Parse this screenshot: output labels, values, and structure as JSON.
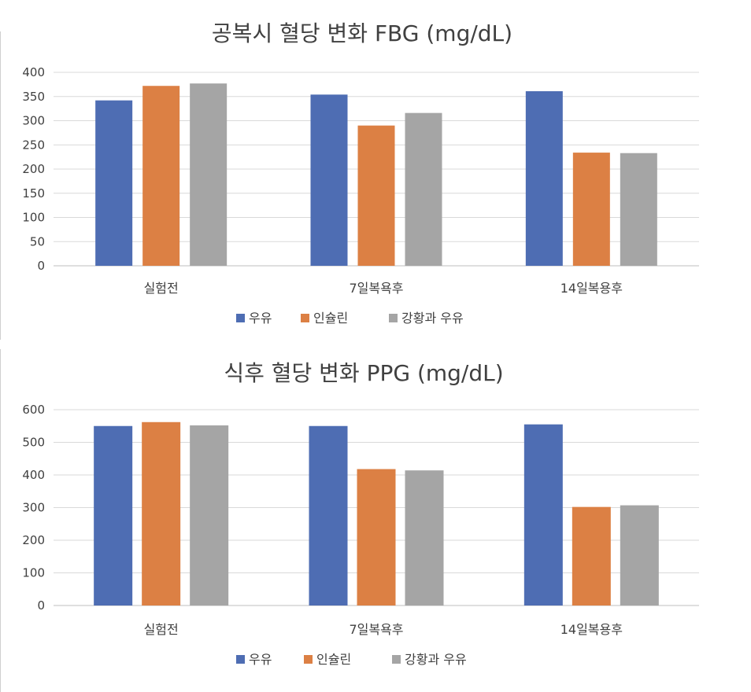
{
  "chart_data": [
    {
      "type": "bar",
      "title": "공복시 혈당 변화 FBG (mg/dL)",
      "categories": [
        "실험전",
        "7일복욕후",
        "14일복용후"
      ],
      "ylim": [
        0,
        400
      ],
      "yticks": [
        0,
        50,
        100,
        150,
        200,
        250,
        300,
        350,
        400
      ],
      "grid": true,
      "legend_position": "bottom",
      "series": [
        {
          "name": "우유",
          "color": "#4e6db3",
          "values": [
            342,
            354,
            361
          ]
        },
        {
          "name": "인슐린",
          "color": "#dc8044",
          "values": [
            372,
            290,
            234
          ]
        },
        {
          "name": "강황과 우유",
          "color": "#a5a5a5",
          "values": [
            377,
            316,
            233
          ]
        }
      ]
    },
    {
      "type": "bar",
      "title": "식후 혈당 변화 PPG (mg/dL)",
      "categories": [
        "실험전",
        "7일복욕후",
        "14일복용후"
      ],
      "ylim": [
        0,
        600
      ],
      "yticks": [
        0,
        100,
        200,
        300,
        400,
        500,
        600
      ],
      "grid": true,
      "legend_position": "bottom",
      "series": [
        {
          "name": "우유",
          "color": "#4e6db3",
          "values": [
            550,
            550,
            555
          ]
        },
        {
          "name": "인슐린",
          "color": "#dc8044",
          "values": [
            562,
            418,
            302
          ]
        },
        {
          "name": "강황과 우유",
          "color": "#a5a5a5",
          "values": [
            552,
            414,
            307
          ]
        }
      ]
    }
  ]
}
